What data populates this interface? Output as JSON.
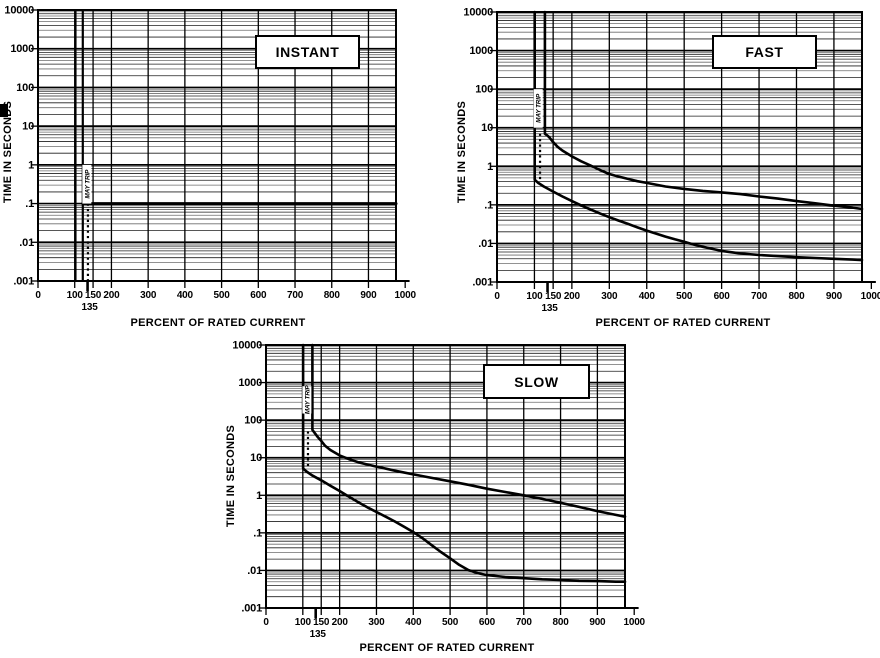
{
  "figure": {
    "background": "#ffffff",
    "line_color": "#000000",
    "grid_minor_color": "#6e6e6e",
    "grid_major_color": "#000000"
  },
  "chart_data": [
    {
      "type": "line",
      "title": "INSTANT",
      "xlabel": "PERCENT OF RATED CURRENT",
      "ylabel": "TIME IN SECONDS",
      "x_range": [
        0,
        1000
      ],
      "y_range": [
        0.001,
        10000
      ],
      "y_scale": "log",
      "grid": "on",
      "x_gridlines": [
        100,
        150,
        200,
        300,
        400,
        500,
        600,
        700,
        800,
        900
      ],
      "x_ticks": [
        {
          "v": 0,
          "label": "0"
        },
        {
          "v": 100,
          "label": "100"
        },
        {
          "v": 150,
          "label": "150"
        },
        {
          "v": 200,
          "label": "200"
        },
        {
          "v": 300,
          "label": "300"
        },
        {
          "v": 400,
          "label": "400"
        },
        {
          "v": 500,
          "label": "500"
        },
        {
          "v": 600,
          "label": "600"
        },
        {
          "v": 700,
          "label": "700"
        },
        {
          "v": 800,
          "label": "800"
        },
        {
          "v": 900,
          "label": "900"
        },
        {
          "v": 1000,
          "label": "1000"
        }
      ],
      "x_special_tick": {
        "v": 135,
        "label": "135"
      },
      "y_ticks": [
        {
          "v": 10000,
          "label": "10000"
        },
        {
          "v": 1000,
          "label": "1000"
        },
        {
          "v": 100,
          "label": "100"
        },
        {
          "v": 10,
          "label": "10"
        },
        {
          "v": 1,
          "label": "1"
        },
        {
          "v": 0.1,
          "label": ".1"
        },
        {
          "v": 0.01,
          "label": ".01"
        },
        {
          "v": 0.001,
          "label": ".001"
        }
      ],
      "annotations": {
        "vlines": [
          {
            "x": 102,
            "y1": 10000,
            "y2": 0.001,
            "style": "solid"
          },
          {
            "x": 122,
            "y1": 10000,
            "y2": 0.001,
            "style": "solid"
          },
          {
            "x": 136,
            "y1": 0.1,
            "y2": 0.001,
            "style": "dotted"
          }
        ],
        "band_label": {
          "text": "MAY TRIP",
          "x": 133,
          "y1": 1,
          "y2": 0.1
        }
      },
      "series": [
        {
          "name": "instant-trip-line",
          "width": 3,
          "points": [
            [
              122,
              0.1
            ],
            [
              975,
              0.1
            ]
          ]
        }
      ]
    },
    {
      "type": "line",
      "title": "FAST",
      "xlabel": "PERCENT OF RATED CURRENT",
      "ylabel": "TIME IN SECONDS",
      "x_range": [
        0,
        1000
      ],
      "y_range": [
        0.001,
        10000
      ],
      "y_scale": "log",
      "grid": "on",
      "x_gridlines": [
        100,
        150,
        200,
        300,
        400,
        500,
        600,
        700,
        800,
        900
      ],
      "x_ticks": [
        {
          "v": 0,
          "label": "0"
        },
        {
          "v": 100,
          "label": "100"
        },
        {
          "v": 150,
          "label": "150"
        },
        {
          "v": 200,
          "label": "200"
        },
        {
          "v": 300,
          "label": "300"
        },
        {
          "v": 400,
          "label": "400"
        },
        {
          "v": 500,
          "label": "500"
        },
        {
          "v": 600,
          "label": "600"
        },
        {
          "v": 700,
          "label": "700"
        },
        {
          "v": 800,
          "label": "800"
        },
        {
          "v": 900,
          "label": "900"
        },
        {
          "v": 1000,
          "label": "1000"
        }
      ],
      "x_special_tick": {
        "v": 135,
        "label": "135"
      },
      "y_ticks": [
        {
          "v": 10000,
          "label": "10000"
        },
        {
          "v": 1000,
          "label": "1000"
        },
        {
          "v": 100,
          "label": "100"
        },
        {
          "v": 10,
          "label": "10"
        },
        {
          "v": 1,
          "label": "1"
        },
        {
          "v": 0.1,
          "label": ".1"
        },
        {
          "v": 0.01,
          "label": ".01"
        },
        {
          "v": 0.001,
          "label": ".001"
        }
      ],
      "annotations": {
        "vlines": [
          {
            "x": 115,
            "y1": 7,
            "y2": 0.42,
            "style": "dotted"
          }
        ],
        "band_label": {
          "text": "MAY TRIP",
          "x": 110,
          "y1": 100,
          "y2": 10
        }
      },
      "series": [
        {
          "name": "max-trip-time-curve",
          "width": 2.6,
          "points": [
            [
              128,
              10000
            ],
            [
              128,
              7
            ],
            [
              135,
              6.2
            ],
            [
              140,
              5.6
            ],
            [
              150,
              4.2
            ],
            [
              162,
              3.2
            ],
            [
              175,
              2.55
            ],
            [
              200,
              1.8
            ],
            [
              225,
              1.35
            ],
            [
              250,
              1.05
            ],
            [
              275,
              0.8
            ],
            [
              300,
              0.63
            ],
            [
              325,
              0.54
            ],
            [
              350,
              0.47
            ],
            [
              375,
              0.41
            ],
            [
              400,
              0.37
            ],
            [
              450,
              0.3
            ],
            [
              500,
              0.26
            ],
            [
              550,
              0.23
            ],
            [
              600,
              0.21
            ],
            [
              650,
              0.19
            ],
            [
              700,
              0.165
            ],
            [
              750,
              0.145
            ],
            [
              800,
              0.125
            ],
            [
              850,
              0.11
            ],
            [
              900,
              0.095
            ],
            [
              950,
              0.085
            ],
            [
              975,
              0.078
            ]
          ]
        },
        {
          "name": "min-trip-time-curve",
          "width": 2.6,
          "points": [
            [
              100.8,
              10000
            ],
            [
              100.8,
              0.45
            ],
            [
              110,
              0.37
            ],
            [
              125,
              0.3
            ],
            [
              150,
              0.22
            ],
            [
              175,
              0.165
            ],
            [
              200,
              0.125
            ],
            [
              225,
              0.097
            ],
            [
              250,
              0.076
            ],
            [
              275,
              0.06
            ],
            [
              300,
              0.048
            ],
            [
              325,
              0.039
            ],
            [
              350,
              0.032
            ],
            [
              375,
              0.026
            ],
            [
              400,
              0.0215
            ],
            [
              425,
              0.018
            ],
            [
              450,
              0.015
            ],
            [
              475,
              0.0128
            ],
            [
              500,
              0.011
            ],
            [
              525,
              0.0094
            ],
            [
              550,
              0.0082
            ],
            [
              575,
              0.0072
            ],
            [
              600,
              0.0064
            ],
            [
              650,
              0.0055
            ],
            [
              700,
              0.005
            ],
            [
              750,
              0.0047
            ],
            [
              800,
              0.0044
            ],
            [
              850,
              0.0042
            ],
            [
              900,
              0.004
            ],
            [
              950,
              0.0038
            ],
            [
              975,
              0.0037
            ]
          ]
        }
      ]
    },
    {
      "type": "line",
      "title": "SLOW",
      "xlabel": "PERCENT OF RATED CURRENT",
      "ylabel": "TIME IN SECONDS",
      "x_range": [
        0,
        1000
      ],
      "y_range": [
        0.001,
        10000
      ],
      "y_scale": "log",
      "grid": "on",
      "x_gridlines": [
        100,
        150,
        200,
        300,
        400,
        500,
        600,
        700,
        800,
        900
      ],
      "x_ticks": [
        {
          "v": 0,
          "label": "0"
        },
        {
          "v": 100,
          "label": "100"
        },
        {
          "v": 150,
          "label": "150"
        },
        {
          "v": 200,
          "label": "200"
        },
        {
          "v": 300,
          "label": "300"
        },
        {
          "v": 400,
          "label": "400"
        },
        {
          "v": 500,
          "label": "500"
        },
        {
          "v": 600,
          "label": "600"
        },
        {
          "v": 700,
          "label": "700"
        },
        {
          "v": 800,
          "label": "800"
        },
        {
          "v": 900,
          "label": "900"
        },
        {
          "v": 1000,
          "label": "1000"
        }
      ],
      "x_special_tick": {
        "v": 135,
        "label": "135"
      },
      "y_ticks": [
        {
          "v": 10000,
          "label": "10000"
        },
        {
          "v": 1000,
          "label": "1000"
        },
        {
          "v": 100,
          "label": "100"
        },
        {
          "v": 10,
          "label": "10"
        },
        {
          "v": 1,
          "label": "1"
        },
        {
          "v": 0.1,
          "label": ".1"
        },
        {
          "v": 0.01,
          "label": ".01"
        },
        {
          "v": 0.001,
          "label": ".001"
        }
      ],
      "annotations": {
        "vlines": [
          {
            "x": 114,
            "y1": 50,
            "y2": 5.2,
            "style": "dotted"
          }
        ],
        "band_label": {
          "text": "MAY TRIP",
          "x": 111,
          "y1": 800,
          "y2": 150
        }
      },
      "series": [
        {
          "name": "max-trip-time-curve",
          "width": 2.6,
          "points": [
            [
              126,
              10000
            ],
            [
              126,
              55
            ],
            [
              135,
              42
            ],
            [
              140,
              36
            ],
            [
              150,
              28
            ],
            [
              160,
              21
            ],
            [
              175,
              16
            ],
            [
              200,
              11.5
            ],
            [
              225,
              9.2
            ],
            [
              250,
              7.6
            ],
            [
              275,
              6.6
            ],
            [
              300,
              5.8
            ],
            [
              350,
              4.5
            ],
            [
              400,
              3.6
            ],
            [
              450,
              2.9
            ],
            [
              500,
              2.35
            ],
            [
              550,
              1.9
            ],
            [
              600,
              1.5
            ],
            [
              650,
              1.22
            ],
            [
              700,
              1.0
            ],
            [
              750,
              0.8
            ],
            [
              800,
              0.63
            ],
            [
              850,
              0.49
            ],
            [
              900,
              0.38
            ],
            [
              950,
              0.3
            ],
            [
              975,
              0.27
            ]
          ]
        },
        {
          "name": "min-trip-time-curve",
          "width": 2.6,
          "points": [
            [
              100.8,
              10000
            ],
            [
              100.8,
              5.2
            ],
            [
              110,
              4.3
            ],
            [
              125,
              3.4
            ],
            [
              150,
              2.5
            ],
            [
              175,
              1.8
            ],
            [
              200,
              1.3
            ],
            [
              225,
              0.92
            ],
            [
              250,
              0.66
            ],
            [
              275,
              0.48
            ],
            [
              300,
              0.36
            ],
            [
              325,
              0.27
            ],
            [
              350,
              0.2
            ],
            [
              375,
              0.145
            ],
            [
              400,
              0.105
            ],
            [
              425,
              0.072
            ],
            [
              450,
              0.047
            ],
            [
              475,
              0.031
            ],
            [
              500,
              0.021
            ],
            [
              525,
              0.014
            ],
            [
              550,
              0.0102
            ],
            [
              575,
              0.0085
            ],
            [
              600,
              0.0075
            ],
            [
              650,
              0.0067
            ],
            [
              700,
              0.0062
            ],
            [
              750,
              0.0058
            ],
            [
              800,
              0.0056
            ],
            [
              850,
              0.0053
            ],
            [
              900,
              0.0052
            ],
            [
              950,
              0.005
            ],
            [
              975,
              0.005
            ]
          ]
        }
      ]
    }
  ]
}
